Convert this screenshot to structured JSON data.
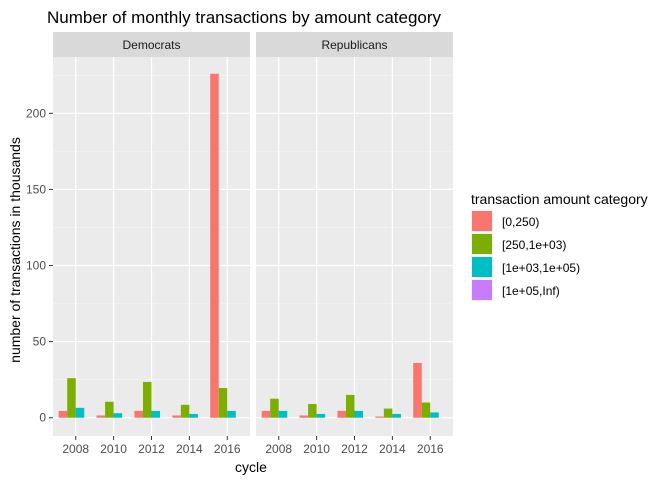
{
  "chart_data": {
    "type": "bar",
    "title": "Number of monthly transactions by amount category",
    "xlabel": "cycle",
    "ylabel": "number of transactions in thousands",
    "ylim": [
      -12,
      237
    ],
    "yticks": [
      0,
      50,
      100,
      150,
      200
    ],
    "categories": [
      "2008",
      "2010",
      "2012",
      "2014",
      "2016"
    ],
    "legend": {
      "title": "transaction amount category",
      "position": "right",
      "entries": [
        {
          "label": "[0,250)",
          "color": "#F8766D"
        },
        {
          "label": "[250,1e+03)",
          "color": "#7CAE00"
        },
        {
          "label": "[1e+03,1e+05)",
          "color": "#00BFC4"
        },
        {
          "label": "[1e+05,Inf)",
          "color": "#C77CFF"
        }
      ]
    },
    "panels": [
      {
        "name": "Democrats",
        "series": [
          {
            "name": "[0,250)",
            "values": [
              4.5,
              1.5,
              4.5,
              1.5,
              226
            ]
          },
          {
            "name": "[250,1e+03)",
            "values": [
              26,
              10.5,
              23.5,
              8.5,
              19.5
            ]
          },
          {
            "name": "[1e+03,1e+05)",
            "values": [
              6.5,
              3,
              4.5,
              2.5,
              4.5
            ]
          },
          {
            "name": "[1e+05,Inf)",
            "values": [
              0,
              0,
              0,
              0,
              0
            ]
          }
        ]
      },
      {
        "name": "Republicans",
        "series": [
          {
            "name": "[0,250)",
            "values": [
              4.5,
              1.5,
              4.5,
              0.8,
              36
            ]
          },
          {
            "name": "[250,1e+03)",
            "values": [
              12.5,
              9,
              15,
              6,
              10
            ]
          },
          {
            "name": "[1e+03,1e+05)",
            "values": [
              4.5,
              2.5,
              4.5,
              2.5,
              3.5
            ]
          },
          {
            "name": "[1e+05,Inf)",
            "values": [
              0,
              0,
              0,
              0,
              0
            ]
          }
        ]
      }
    ]
  }
}
